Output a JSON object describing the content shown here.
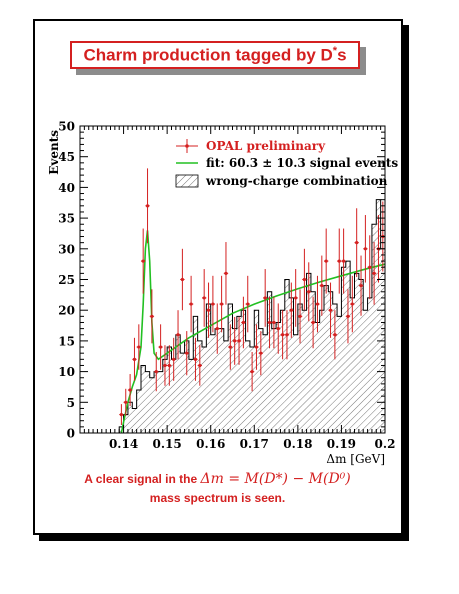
{
  "title": {
    "text": "Charm production tagged by D",
    "superscript": "*",
    "suffix": "s"
  },
  "caption": {
    "line1_prefix": "A clear signal in the ",
    "formula": "Δm = M(D*) − M(D⁰)",
    "line2": "mass spectrum is seen."
  },
  "colors": {
    "accent": "#d42020",
    "fit": "#22c022",
    "histogram": "#000000",
    "hatch": "#666666"
  },
  "chart_data": {
    "type": "bar",
    "xlabel": "Δm [GeV]",
    "ylabel": "Events",
    "xlim": [
      0.13,
      0.2
    ],
    "ylim": [
      0,
      50
    ],
    "x_ticks": [
      "0.14",
      "0.15",
      "0.16",
      "0.17",
      "0.18",
      "0.19",
      "0.2"
    ],
    "y_ticks": [
      "0",
      "5",
      "10",
      "15",
      "20",
      "25",
      "30",
      "35",
      "40",
      "45",
      "50"
    ],
    "legend": {
      "placement": "top-right",
      "entries": [
        "OPAL preliminary",
        "fit: 60.3 ± 10.3 signal events",
        "wrong-charge combination"
      ]
    },
    "bin_width": 0.001,
    "series": [
      {
        "name": "OPAL preliminary",
        "kind": "data points with error bars",
        "x": [
          0.1395,
          0.1405,
          0.1415,
          0.1425,
          0.1435,
          0.1445,
          0.1455,
          0.1465,
          0.1475,
          0.1485,
          0.1495,
          0.1505,
          0.1515,
          0.1525,
          0.1535,
          0.1545,
          0.1555,
          0.1565,
          0.1575,
          0.1585,
          0.1595,
          0.1605,
          0.1615,
          0.1625,
          0.1635,
          0.1645,
          0.1655,
          0.1665,
          0.1675,
          0.1685,
          0.1695,
          0.1705,
          0.1715,
          0.1725,
          0.1735,
          0.1745,
          0.1755,
          0.1765,
          0.1775,
          0.1785,
          0.1795,
          0.1805,
          0.1815,
          0.1825,
          0.1835,
          0.1845,
          0.1855,
          0.1865,
          0.1875,
          0.1885,
          0.1895,
          0.1905,
          0.1915,
          0.1925,
          0.1935,
          0.1945,
          0.1955,
          0.1965,
          0.1975,
          0.1985,
          0.1995
        ],
        "y": [
          3,
          5,
          7,
          12,
          14,
          28,
          37,
          19,
          10,
          14,
          11,
          11,
          12,
          16,
          25,
          13,
          21,
          12,
          11,
          22,
          20,
          21,
          17,
          21,
          26,
          14,
          15,
          15,
          18,
          21,
          10,
          14,
          13,
          22,
          18,
          18,
          17,
          16,
          16,
          20,
          22,
          19,
          25,
          23,
          18,
          21,
          24,
          28,
          20,
          16,
          28,
          28,
          19,
          21,
          31,
          24,
          30,
          27,
          26,
          30,
          32
        ],
        "yerr": [
          1.7,
          2.2,
          2.6,
          3.5,
          3.7,
          5.3,
          6.1,
          4.4,
          3.2,
          3.7,
          3.3,
          3.3,
          3.5,
          4,
          5,
          3.6,
          4.6,
          3.5,
          3.3,
          4.7,
          4.5,
          4.6,
          4.1,
          4.6,
          5.1,
          3.7,
          3.9,
          3.9,
          4.2,
          4.6,
          3.2,
          3.7,
          3.6,
          4.7,
          4.2,
          4.2,
          4.1,
          4,
          4,
          4.5,
          4.7,
          4.4,
          5,
          4.8,
          4.2,
          4.6,
          4.9,
          5.3,
          4.5,
          4,
          5.3,
          5.3,
          4.4,
          4.6,
          5.6,
          4.9,
          5.5,
          5.2,
          5.1,
          5.5,
          5.7
        ]
      },
      {
        "name": "fit: 60.3 ± 10.3 signal events",
        "kind": "line",
        "x": [
          0.1395,
          0.14,
          0.141,
          0.142,
          0.143,
          0.144,
          0.1445,
          0.145,
          0.1455,
          0.146,
          0.1465,
          0.147,
          0.148,
          0.15,
          0.155,
          0.16,
          0.165,
          0.17,
          0.175,
          0.18,
          0.185,
          0.19,
          0.195,
          0.2
        ],
        "y": [
          0,
          1.8,
          5,
          7.5,
          9.5,
          14,
          21,
          30,
          33,
          28,
          18,
          13,
          12,
          13,
          15.5,
          17.5,
          19.5,
          21,
          22.3,
          23.5,
          24.6,
          25.6,
          26.6,
          27.5
        ]
      },
      {
        "name": "wrong-charge combination",
        "kind": "histogram",
        "bin_low": [
          0.139,
          0.14,
          0.141,
          0.142,
          0.143,
          0.144,
          0.145,
          0.146,
          0.147,
          0.148,
          0.149,
          0.15,
          0.151,
          0.152,
          0.153,
          0.154,
          0.155,
          0.156,
          0.157,
          0.158,
          0.159,
          0.16,
          0.161,
          0.162,
          0.163,
          0.164,
          0.165,
          0.166,
          0.167,
          0.168,
          0.169,
          0.17,
          0.171,
          0.172,
          0.173,
          0.174,
          0.175,
          0.176,
          0.177,
          0.178,
          0.179,
          0.18,
          0.181,
          0.182,
          0.183,
          0.184,
          0.185,
          0.186,
          0.187,
          0.188,
          0.189,
          0.19,
          0.191,
          0.192,
          0.193,
          0.194,
          0.195,
          0.196,
          0.197,
          0.198,
          0.199
        ],
        "values": [
          1,
          3,
          5,
          4,
          7,
          11,
          10,
          9,
          10,
          10,
          12,
          14,
          12,
          16,
          13,
          15,
          12,
          19,
          15,
          14,
          21,
          16,
          17,
          17,
          15,
          21,
          17,
          19,
          20,
          15,
          14,
          20,
          17,
          16,
          23,
          17,
          18,
          20,
          25,
          22,
          16,
          21,
          20,
          26,
          23,
          18,
          20,
          24,
          23,
          21,
          19,
          27,
          28,
          22,
          26,
          25,
          20,
          22,
          34,
          38,
          30
        ]
      }
    ]
  }
}
